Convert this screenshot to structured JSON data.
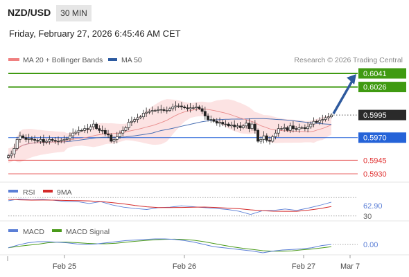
{
  "header": {
    "pair": "NZD/USD",
    "timeframe": "30 MIN",
    "timestamp": "Friday, February 27, 2026 6:45:46 AM CET"
  },
  "chart_data": [
    {
      "type": "candlestick",
      "title": "NZD/USD",
      "legend": [
        {
          "label": "MA 20 + Bollinger Bands",
          "color": "#f08080"
        },
        {
          "label": "MA 50",
          "color": "#2c5aa0"
        }
      ],
      "legend_position": "top-left",
      "copyright": "Research © 2026 Trading Central",
      "ylim": [
        0.5925,
        0.6045
      ],
      "x_labels": [
        "Feb 25",
        "Feb 26",
        "Feb 27",
        "Mar 7"
      ],
      "current_price": "0.5995",
      "levels": [
        {
          "value": "0.6041",
          "kind": "resistance",
          "color": "#3f9a11",
          "style": "box"
        },
        {
          "value": "0.6026",
          "kind": "resistance",
          "color": "#3f9a11",
          "style": "box"
        },
        {
          "value": "0.5970",
          "kind": "pivot",
          "color": "#2563d8",
          "style": "box"
        },
        {
          "value": "0.5945",
          "kind": "support",
          "color": "#e03030",
          "style": "text"
        },
        {
          "value": "0.5930",
          "kind": "support",
          "color": "#e03030",
          "style": "text"
        }
      ],
      "closes": [
        0.595,
        0.5952,
        0.5958,
        0.5968,
        0.5972,
        0.597,
        0.5968,
        0.5969,
        0.5968,
        0.5967,
        0.5966,
        0.5968,
        0.5965,
        0.5966,
        0.5968,
        0.5967,
        0.5966,
        0.5966,
        0.5967,
        0.5968,
        0.5969,
        0.5972,
        0.5975,
        0.5976,
        0.5978,
        0.5978,
        0.598,
        0.5979,
        0.5982,
        0.5985,
        0.598,
        0.5978,
        0.5978,
        0.5974,
        0.5973,
        0.5966,
        0.5968,
        0.5971,
        0.5975,
        0.5978,
        0.5981,
        0.5987,
        0.5988,
        0.599,
        0.5992,
        0.5993,
        0.5997,
        0.5998,
        0.5999,
        0.6,
        0.6,
        0.6001,
        0.6001,
        0.6,
        0.6,
        0.6002,
        0.6004,
        0.6005,
        0.6005,
        0.6004,
        0.6003,
        0.6002,
        0.6003,
        0.6003,
        0.6004,
        0.6002,
        0.5999,
        0.5994,
        0.599,
        0.599,
        0.5988,
        0.5986,
        0.5987,
        0.5985,
        0.5985,
        0.5983,
        0.5984,
        0.5982,
        0.5983,
        0.5981,
        0.5983,
        0.5986,
        0.598,
        0.5985,
        0.5978,
        0.5966,
        0.5968,
        0.5972,
        0.5967,
        0.5966,
        0.5971,
        0.5975,
        0.598,
        0.598,
        0.5981,
        0.5978,
        0.5983,
        0.598,
        0.5979,
        0.5981,
        0.5981,
        0.598,
        0.5982,
        0.5985,
        0.5988,
        0.5987,
        0.5989,
        0.599,
        0.5992,
        0.5993,
        0.5995
      ]
    },
    {
      "type": "line",
      "title": "RSI",
      "series": [
        {
          "name": "RSI",
          "color": "#5b7fd6"
        },
        {
          "name": "9MA",
          "color": "#d42a2a"
        }
      ],
      "ylim": [
        25,
        75
      ],
      "y_labels": [
        "62.90",
        "30"
      ],
      "rsi": [
        66,
        64,
        63,
        65,
        64,
        62,
        63,
        60,
        58,
        52,
        48,
        46,
        45,
        50,
        52,
        49,
        48,
        47,
        46,
        45,
        42,
        36,
        38,
        40,
        44,
        42,
        48,
        55,
        63
      ]
    },
    {
      "type": "line",
      "title": "MACD",
      "series": [
        {
          "name": "MACD",
          "color": "#5b7fd6"
        },
        {
          "name": "MACD Signal",
          "color": "#4a9a1a"
        }
      ],
      "y_labels": [
        "0.00"
      ],
      "macd": [
        -0.6,
        -0.1,
        0.3,
        0.5,
        0.5,
        0.4,
        0.3,
        0.1,
        0.0,
        0.1,
        0.3,
        0.5,
        0.7,
        0.8,
        0.9,
        1.0,
        1.0,
        0.9,
        0.7,
        0.4,
        0.0,
        -0.4,
        -0.6,
        -0.8,
        -1.0,
        -1.2,
        -1.5,
        -1.2,
        -1.0,
        -0.9,
        -0.8,
        -0.6,
        -0.2,
        0.0
      ]
    }
  ]
}
